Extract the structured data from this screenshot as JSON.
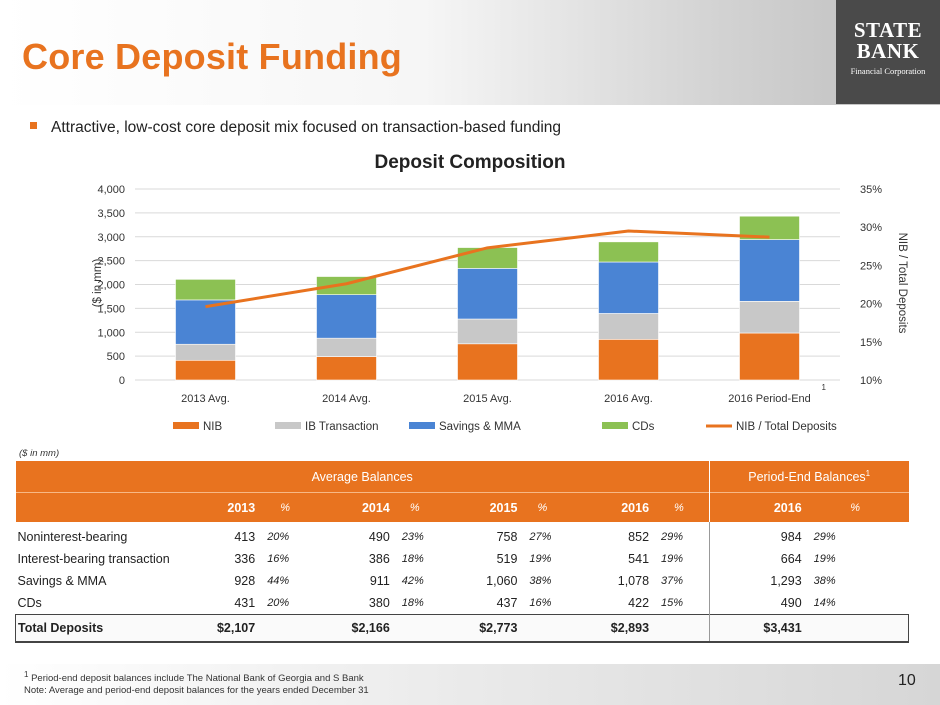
{
  "header": {
    "title": "Core Deposit Funding",
    "logo": {
      "line1": "STATE",
      "line2": "BANK",
      "line3": "Financial Corporation"
    }
  },
  "bullet": "Attractive, low-cost core deposit mix focused on transaction-based funding",
  "chart_data": {
    "type": "bar",
    "title": "Deposit Composition",
    "categories": [
      "2013 Avg.",
      "2014 Avg.",
      "2015 Avg.",
      "2016 Avg.",
      "2016 Period-End"
    ],
    "category_superscripts": [
      "",
      "",
      "",
      "",
      "1"
    ],
    "stacked": true,
    "series": [
      {
        "name": "NIB",
        "values": [
          413,
          490,
          758,
          852,
          984
        ],
        "color": "#e8731f"
      },
      {
        "name": "IB Transaction",
        "values": [
          336,
          386,
          519,
          541,
          664
        ],
        "color": "#c8c8c8"
      },
      {
        "name": "Savings & MMA",
        "values": [
          928,
          911,
          1060,
          1078,
          1293
        ],
        "color": "#4a84d4"
      },
      {
        "name": "CDs",
        "values": [
          431,
          380,
          437,
          422,
          490
        ],
        "color": "#8cc153"
      }
    ],
    "line_series": {
      "name": "NIB / Total Deposits",
      "values": [
        19.6,
        22.6,
        27.3,
        29.5,
        28.7
      ],
      "color": "#e8731f",
      "axis": "right"
    },
    "ylabel": "($ in mm)",
    "ylim": [
      0,
      4000
    ],
    "yticks": [
      "0",
      "500",
      "1,000",
      "1,500",
      "2,000",
      "2,500",
      "3,000",
      "3,500",
      "4,000"
    ],
    "y2label": "NIB / Total Deposits",
    "y2lim": [
      10,
      35
    ],
    "y2ticks": [
      "10%",
      "15%",
      "20%",
      "25%",
      "30%",
      "35%"
    ],
    "grid": true,
    "legend": "bottom"
  },
  "table": {
    "note": "($ in mm)",
    "group_headers": {
      "average": "Average Balances",
      "period_end": "Period-End Balances",
      "period_end_sup": "1"
    },
    "columns": [
      "2013",
      "%",
      "2014",
      "%",
      "2015",
      "%",
      "2016",
      "%",
      "2016",
      "%"
    ],
    "rows": [
      {
        "label": "Noninterest-bearing",
        "values": [
          "413",
          "20%",
          "490",
          "23%",
          "758",
          "27%",
          "852",
          "29%",
          "984",
          "29%"
        ]
      },
      {
        "label": "Interest-bearing transaction",
        "values": [
          "336",
          "16%",
          "386",
          "18%",
          "519",
          "19%",
          "541",
          "19%",
          "664",
          "19%"
        ]
      },
      {
        "label": "Savings & MMA",
        "values": [
          "928",
          "44%",
          "911",
          "42%",
          "1,060",
          "38%",
          "1,078",
          "37%",
          "1,293",
          "38%"
        ]
      },
      {
        "label": "CDs",
        "values": [
          "431",
          "20%",
          "380",
          "18%",
          "437",
          "16%",
          "422",
          "15%",
          "490",
          "14%"
        ]
      }
    ],
    "total": {
      "label": "Total Deposits",
      "values": [
        "$2,107",
        "$2,166",
        "$2,773",
        "$2,893",
        "$3,431"
      ]
    }
  },
  "footer": {
    "footnote_marker": "1",
    "footnote": "Period-end deposit balances include The National Bank of Georgia and S Bank",
    "note": "Note: Average and period-end deposit balances for the years ended December 31",
    "page_number": "10"
  }
}
